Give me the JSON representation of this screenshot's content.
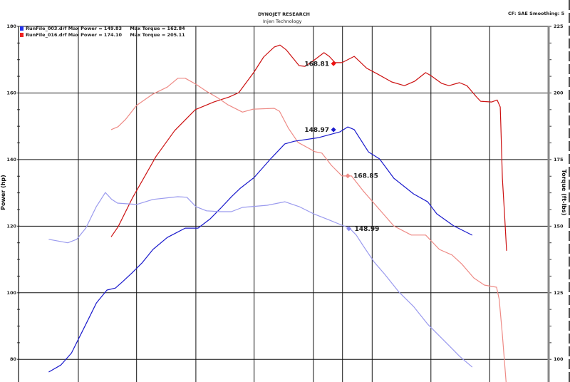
{
  "header": {
    "title": "DYNOJET RESEARCH",
    "subtitle": "Injen Technology",
    "settings": "CF: SAE  Smoothing: 5"
  },
  "legend": [
    {
      "text": "RunFile_003.drf Max Power = 149.83     Max Torque = 162.84",
      "color": "#2233ee"
    },
    {
      "text": "RunFile_016.drf Max Power = 174.10     Max Torque = 205.11",
      "color": "#ee2222"
    }
  ],
  "chart_data": {
    "type": "line",
    "title": "DYNOJET RESEARCH",
    "subtitle": "Injen Technology",
    "ylabel_left": "Power (hp)",
    "ylabel_right": "Torque (ft-lbs)",
    "xlabel": "",
    "xlim": [
      0,
      100
    ],
    "ylim_left": [
      73.2,
      180
    ],
    "ylim_right": [
      91.4,
      225
    ],
    "yticks_left": [
      "80",
      "100",
      "120",
      "140",
      "160",
      "180"
    ],
    "yticks_right": [
      "100",
      "125",
      "150",
      "175",
      "200",
      "225"
    ],
    "grid": true,
    "legend_position": "top-left",
    "series": [
      {
        "name": "RunFile_016.drf Power",
        "axis": "left",
        "color": "#cc1111",
        "points": [
          [
            17.5,
            116.8
          ],
          [
            18.8,
            119.8
          ],
          [
            21.5,
            128.4
          ],
          [
            26.0,
            141.0
          ],
          [
            29.5,
            148.7
          ],
          [
            33.4,
            155.0
          ],
          [
            36.9,
            157.3
          ],
          [
            39.8,
            158.8
          ],
          [
            41.6,
            160.1
          ],
          [
            44.5,
            166.3
          ],
          [
            46.3,
            170.8
          ],
          [
            48.3,
            173.8
          ],
          [
            49.4,
            174.4
          ],
          [
            50.6,
            172.9
          ],
          [
            53.0,
            168.2
          ],
          [
            54.1,
            168.0
          ],
          [
            55.7,
            169.7
          ],
          [
            57.7,
            172.1
          ],
          [
            58.7,
            171.0
          ],
          [
            59.8,
            169.1
          ],
          [
            61.1,
            169.1
          ],
          [
            63.4,
            171.0
          ],
          [
            65.8,
            167.4
          ],
          [
            67.8,
            165.7
          ],
          [
            70.5,
            163.3
          ],
          [
            72.9,
            162.2
          ],
          [
            74.8,
            163.5
          ],
          [
            76.9,
            166.1
          ],
          [
            77.9,
            165.2
          ],
          [
            79.9,
            162.9
          ],
          [
            81.3,
            162.2
          ],
          [
            83.3,
            163.1
          ],
          [
            84.7,
            162.2
          ],
          [
            86.4,
            159.0
          ],
          [
            87.3,
            157.5
          ],
          [
            89.4,
            157.3
          ],
          [
            90.4,
            157.9
          ],
          [
            91.0,
            155.8
          ],
          [
            91.1,
            150.5
          ],
          [
            91.4,
            134.4
          ],
          [
            91.8,
            123.7
          ],
          [
            92.2,
            112.6
          ]
        ]
      },
      {
        "name": "RunFile_016.drf Torque",
        "axis": "right",
        "color": "#ee8a85",
        "points": [
          [
            17.5,
            186.2
          ],
          [
            18.8,
            187.3
          ],
          [
            20.2,
            190.0
          ],
          [
            22.3,
            195.3
          ],
          [
            25.4,
            199.6
          ],
          [
            28.1,
            202.2
          ],
          [
            30.1,
            205.5
          ],
          [
            31.5,
            205.5
          ],
          [
            33.5,
            203.3
          ],
          [
            35.5,
            200.6
          ],
          [
            37.6,
            198.2
          ],
          [
            39.6,
            195.5
          ],
          [
            42.3,
            192.8
          ],
          [
            44.3,
            193.9
          ],
          [
            48.3,
            194.2
          ],
          [
            49.3,
            193.1
          ],
          [
            51.0,
            186.7
          ],
          [
            52.8,
            181.4
          ],
          [
            56.0,
            177.9
          ],
          [
            57.3,
            177.4
          ],
          [
            59.1,
            172.8
          ],
          [
            61.1,
            168.8
          ],
          [
            62.9,
            168.8
          ],
          [
            65.1,
            163.2
          ],
          [
            66.9,
            159.1
          ],
          [
            70.9,
            150.0
          ],
          [
            74.2,
            146.6
          ],
          [
            76.9,
            146.6
          ],
          [
            79.5,
            141.2
          ],
          [
            81.9,
            139.1
          ],
          [
            83.7,
            135.8
          ],
          [
            86.0,
            130.5
          ],
          [
            88.0,
            127.8
          ],
          [
            90.3,
            127.0
          ],
          [
            90.8,
            122.5
          ],
          [
            91.4,
            109.1
          ],
          [
            92.1,
            91.4
          ]
        ]
      },
      {
        "name": "RunFile_003.drf Power",
        "axis": "left",
        "color": "#1a1acc",
        "points": [
          [
            5.7,
            76.2
          ],
          [
            8.0,
            78.3
          ],
          [
            10.0,
            81.9
          ],
          [
            12.7,
            90.5
          ],
          [
            14.7,
            96.9
          ],
          [
            16.7,
            100.8
          ],
          [
            18.3,
            101.4
          ],
          [
            19.7,
            103.4
          ],
          [
            21.4,
            105.9
          ],
          [
            23.4,
            109.1
          ],
          [
            25.4,
            113.0
          ],
          [
            28.1,
            116.6
          ],
          [
            31.5,
            119.4
          ],
          [
            33.9,
            119.4
          ],
          [
            36.2,
            122.2
          ],
          [
            38.2,
            125.4
          ],
          [
            40.2,
            128.8
          ],
          [
            41.9,
            131.4
          ],
          [
            44.5,
            134.6
          ],
          [
            47.6,
            140.2
          ],
          [
            50.3,
            144.7
          ],
          [
            52.1,
            145.5
          ],
          [
            56.7,
            146.6
          ],
          [
            60.7,
            148.3
          ],
          [
            62.2,
            149.8
          ],
          [
            63.4,
            149.0
          ],
          [
            66.1,
            142.3
          ],
          [
            68.2,
            140.2
          ],
          [
            70.9,
            134.4
          ],
          [
            74.6,
            129.7
          ],
          [
            77.3,
            127.3
          ],
          [
            79.0,
            123.7
          ],
          [
            82.2,
            120.1
          ],
          [
            85.7,
            117.3
          ]
        ]
      },
      {
        "name": "RunFile_003.drf Torque",
        "axis": "right",
        "color": "#9a9aee",
        "points": [
          [
            5.7,
            145.0
          ],
          [
            9.3,
            143.7
          ],
          [
            11.0,
            145.0
          ],
          [
            12.7,
            149.2
          ],
          [
            14.7,
            157.3
          ],
          [
            16.4,
            162.6
          ],
          [
            17.6,
            160.0
          ],
          [
            18.7,
            158.6
          ],
          [
            22.3,
            158.1
          ],
          [
            25.4,
            160.0
          ],
          [
            30.1,
            161.0
          ],
          [
            31.8,
            160.8
          ],
          [
            33.5,
            157.3
          ],
          [
            35.5,
            155.7
          ],
          [
            38.2,
            155.4
          ],
          [
            40.2,
            155.4
          ],
          [
            42.3,
            157.0
          ],
          [
            47.0,
            157.8
          ],
          [
            50.3,
            159.1
          ],
          [
            53.0,
            157.3
          ],
          [
            55.7,
            154.6
          ],
          [
            58.4,
            152.5
          ],
          [
            61.1,
            150.3
          ],
          [
            62.5,
            149.2
          ],
          [
            63.8,
            146.6
          ],
          [
            65.1,
            142.6
          ],
          [
            67.2,
            136.4
          ],
          [
            69.2,
            131.8
          ],
          [
            71.9,
            125.1
          ],
          [
            74.6,
            119.8
          ],
          [
            77.3,
            113.1
          ],
          [
            81.3,
            105.1
          ],
          [
            83.3,
            101.1
          ],
          [
            85.7,
            97.0
          ]
        ]
      }
    ],
    "markers": [
      {
        "label": "168.81",
        "x": 59.5,
        "y": 168.81,
        "axis": "left",
        "color": "#ee1111",
        "side": "left"
      },
      {
        "label": "148.97",
        "x": 59.5,
        "y": 148.97,
        "axis": "left",
        "color": "#1a1acc",
        "side": "left"
      },
      {
        "label": "168.85",
        "x": 62.2,
        "y": 168.85,
        "axis": "right",
        "color": "#ee8a85",
        "side": "right"
      },
      {
        "label": "148.99",
        "x": 62.4,
        "y": 148.99,
        "axis": "right",
        "color": "#8a8aee",
        "side": "right"
      }
    ]
  }
}
